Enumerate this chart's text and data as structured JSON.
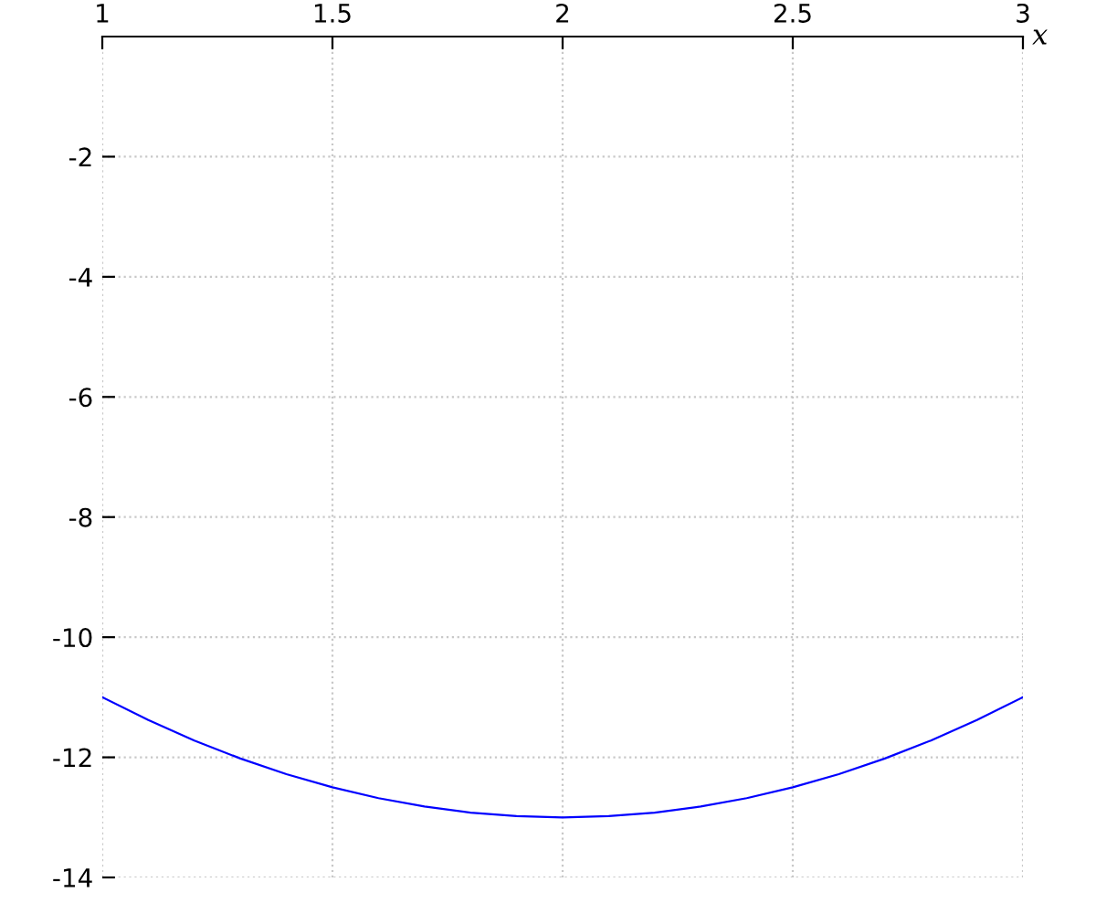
{
  "chart_data": {
    "type": "line",
    "xlabel": "x",
    "series": [
      {
        "color": "#0000ff",
        "x": [
          1.0,
          1.1,
          1.2,
          1.3,
          1.4,
          1.5,
          1.6,
          1.7,
          1.8,
          1.9,
          2.0,
          2.1,
          2.2,
          2.3,
          2.4,
          2.5,
          2.6,
          2.7,
          2.8,
          2.9,
          3.0
        ],
        "values": [
          -11.0,
          -11.38,
          -11.72,
          -12.02,
          -12.28,
          -12.5,
          -12.68,
          -12.82,
          -12.92,
          -12.98,
          -13.0,
          -12.98,
          -12.92,
          -12.82,
          -12.68,
          -12.5,
          -12.28,
          -12.02,
          -11.72,
          -11.38,
          -11.0
        ]
      }
    ],
    "xlim": [
      1,
      3
    ],
    "xticks": [
      1,
      1.5,
      2,
      2.5,
      3
    ],
    "ylim": [
      -14,
      0
    ],
    "yticks": [
      -14,
      -12,
      -10,
      -8,
      -6,
      -4,
      -2
    ],
    "grid": true,
    "line_style": "solid"
  }
}
